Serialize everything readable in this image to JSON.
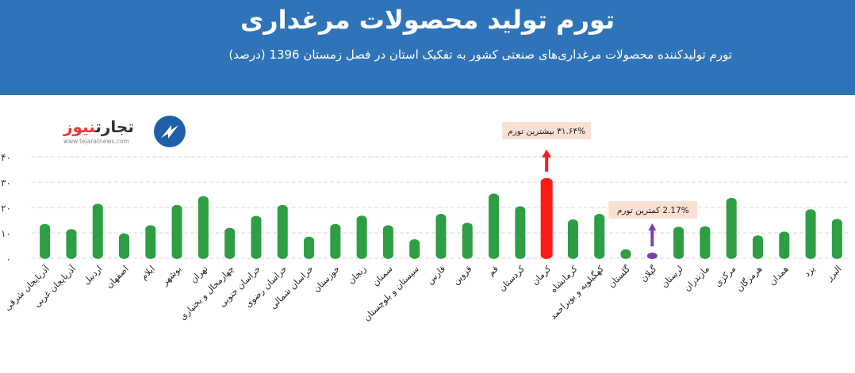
{
  "header": {
    "title": "تورم تولید محصولات مرغداری",
    "subtitle": "تورم تولیدکننده محصولات مرغداری‌های صنعتی کشور به تفکیک استان در فصل زمستان 1396 (درصد)"
  },
  "logo": {
    "name_part1": "تجارت",
    "name_part2": "نیوز",
    "url": "www.tejaratnews.com"
  },
  "annotations": {
    "max_label": "۳۱.۶۴% بیشترین تورم",
    "min_label": "2.17% کمترین تورم"
  },
  "colors": {
    "bar": "#2e9e42",
    "bar_highlight_max": "#ff1a1a",
    "bar_highlight_min": "#7b3fb0",
    "header": "#2f74b8"
  },
  "chart_data": {
    "type": "bar",
    "categories": [
      "آذربایجان شرقی",
      "آذربایجان غربی",
      "اردبیل",
      "اصفهان",
      "ایلام",
      "بوشهر",
      "تهران",
      "چهارمحال و بختیاری",
      "خراسان جنوبی",
      "خراسان رضوی",
      "خراسان شمالی",
      "خوزستان",
      "زنجان",
      "سمنان",
      "سیستان و بلوچستان",
      "فارس",
      "قزوین",
      "قم",
      "کردستان",
      "کرمان",
      "کرمانشاه",
      "کهگیلویه و بویراحمد",
      "گلستان",
      "گیلان",
      "لرستان",
      "مازندران",
      "مرکزی",
      "هرمزگان",
      "همدان",
      "یزد",
      "البرز"
    ],
    "values": [
      13.5,
      11.5,
      21.5,
      9.8,
      13,
      21,
      24.5,
      12,
      16.7,
      21,
      8.5,
      13.5,
      16.8,
      13,
      7.5,
      17.5,
      14,
      25.5,
      20.5,
      31.64,
      15.3,
      17.5,
      3.5,
      2.17,
      12.4,
      12.6,
      23.8,
      9,
      10.5,
      19.3,
      15.5
    ],
    "highlight_max_index": 19,
    "highlight_min_index": 23,
    "ylim": [
      0,
      40
    ],
    "yticks": [
      "۰",
      "۱۰",
      "۲۰",
      "۳۰",
      "۴۰"
    ],
    "grid": true,
    "xlabel": "",
    "ylabel": ""
  }
}
